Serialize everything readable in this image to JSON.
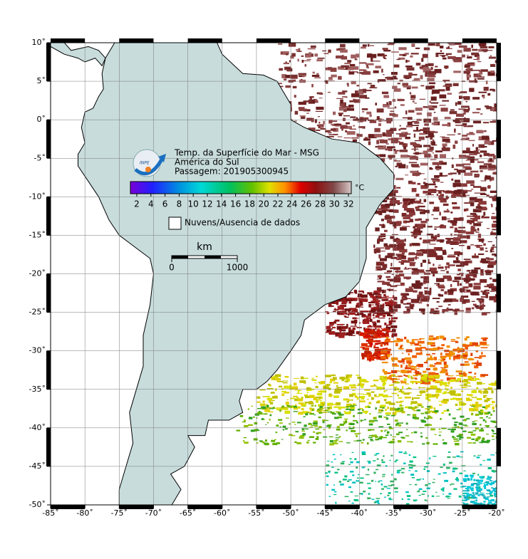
{
  "title_lines": [
    "Temp. da Superfície do Mar - MSG",
    "América do Sul",
    "Passagem: 201905300945"
  ],
  "logo": "INPE",
  "colorbar": {
    "unit": "°C",
    "ticks": [
      2,
      4,
      6,
      8,
      10,
      12,
      14,
      16,
      18,
      20,
      22,
      24,
      26,
      28,
      30,
      32
    ]
  },
  "legend": "Nuvens/Ausencia de dados",
  "scale_bar": {
    "unit": "km",
    "ticks": [
      0,
      1000
    ]
  },
  "axes": {
    "lon_ticks": [
      {
        "value": -85,
        "label": "-85˚"
      },
      {
        "value": -80,
        "label": "-80˚"
      },
      {
        "value": -75,
        "label": "-75˚"
      },
      {
        "value": -70,
        "label": "-70˚"
      },
      {
        "value": -65,
        "label": "-65˚"
      },
      {
        "value": -60,
        "label": "-60˚"
      },
      {
        "value": -55,
        "label": "-55˚"
      },
      {
        "value": -50,
        "label": "-50˚"
      },
      {
        "value": -45,
        "label": "-45˚"
      },
      {
        "value": -40,
        "label": "-40˚"
      },
      {
        "value": -35,
        "label": "-35˚"
      },
      {
        "value": -30,
        "label": "-30˚"
      },
      {
        "value": -25,
        "label": "-25˚"
      },
      {
        "value": -20,
        "label": "-20˚"
      }
    ],
    "lat_ticks": [
      {
        "value": 10,
        "label": "10˚"
      },
      {
        "value": 5,
        "label": "5˚"
      },
      {
        "value": 0,
        "label": "0˚"
      },
      {
        "value": -5,
        "label": "-5˚"
      },
      {
        "value": -10,
        "label": "-10˚"
      },
      {
        "value": -15,
        "label": "-15˚"
      },
      {
        "value": -20,
        "label": "-20˚"
      },
      {
        "value": -25,
        "label": "-25˚"
      },
      {
        "value": -30,
        "label": "-30˚"
      },
      {
        "value": -35,
        "label": "-35˚"
      },
      {
        "value": -40,
        "label": "-40˚"
      },
      {
        "value": -45,
        "label": "-45˚"
      },
      {
        "value": -50,
        "label": "-50˚"
      }
    ]
  }
}
